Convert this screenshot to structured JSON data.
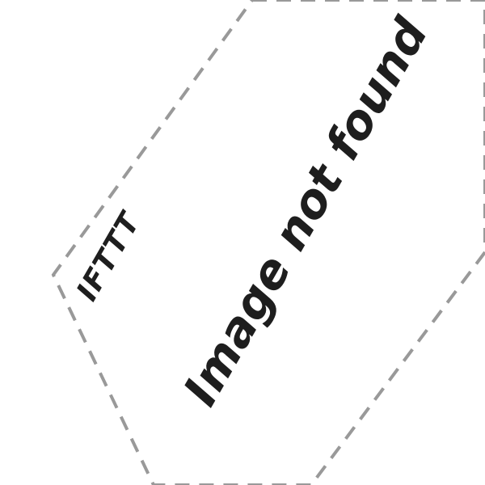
{
  "placeholder": {
    "brand": "IFTTT",
    "message": "Image not found"
  },
  "colors": {
    "background": "#ffffff",
    "text": "#1e1e1e",
    "dashed_border": "#999999"
  }
}
